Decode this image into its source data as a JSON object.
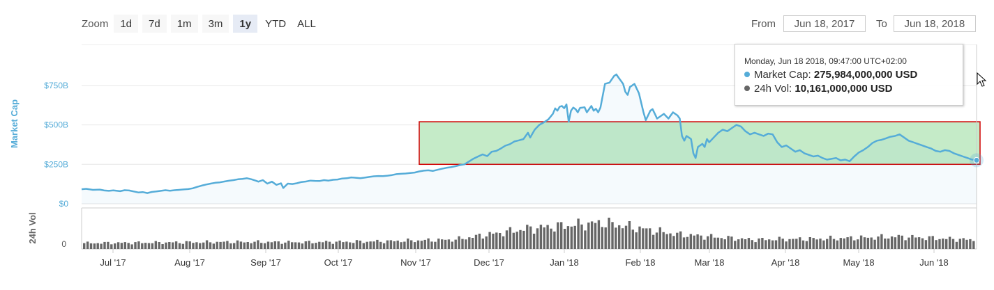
{
  "zoom": {
    "label": "Zoom",
    "buttons": [
      "1d",
      "7d",
      "1m",
      "3m",
      "1y",
      "YTD",
      "ALL"
    ],
    "active": "1y"
  },
  "range": {
    "from_label": "From",
    "from_value": "Jun 18, 2017",
    "to_label": "To",
    "to_value": "Jun 18, 2018"
  },
  "tooltip": {
    "date": "Monday, Jun 18 2018, 09:47:00 UTC+02:00",
    "market_cap_label": "Market Cap:",
    "market_cap_value": "275,984,000,000 USD",
    "vol_label": "24h Vol:",
    "vol_value": "10,161,000,000 USD"
  },
  "colors": {
    "market_cap": "#55acd8",
    "volume": "#666666",
    "highlight_fill": "#c5ebc8",
    "highlight_border": "#d00000"
  },
  "chart_data": {
    "type": "area",
    "ylabel": "Market Cap",
    "ylabel_vol": "24h Vol",
    "y_ticks": [
      "$0",
      "$250B",
      "$500B",
      "$750B"
    ],
    "vol_ticks": [
      "0"
    ],
    "x_ticks": [
      "Jul '17",
      "Aug '17",
      "Sep '17",
      "Oct '17",
      "Nov '17",
      "Dec '17",
      "Jan '18",
      "Feb '18",
      "Mar '18",
      "Apr '18",
      "May '18",
      "Jun '18"
    ],
    "ylim": [
      0,
      800
    ],
    "x_range_days": [
      0,
      365
    ],
    "series": [
      {
        "name": "Market Cap",
        "unit": "billion USD",
        "points": [
          [
            0,
            92
          ],
          [
            2,
            95
          ],
          [
            5,
            88
          ],
          [
            8,
            90
          ],
          [
            10,
            84
          ],
          [
            12,
            82
          ],
          [
            14,
            85
          ],
          [
            17,
            80
          ],
          [
            19,
            86
          ],
          [
            21,
            84
          ],
          [
            23,
            78
          ],
          [
            25,
            72
          ],
          [
            27,
            74
          ],
          [
            29,
            68
          ],
          [
            31,
            75
          ],
          [
            33,
            78
          ],
          [
            35,
            82
          ],
          [
            37,
            86
          ],
          [
            39,
            83
          ],
          [
            41,
            86
          ],
          [
            43,
            88
          ],
          [
            45,
            91
          ],
          [
            47,
            93
          ],
          [
            49,
            98
          ],
          [
            51,
            107
          ],
          [
            53,
            115
          ],
          [
            55,
            122
          ],
          [
            57,
            128
          ],
          [
            59,
            133
          ],
          [
            61,
            136
          ],
          [
            63,
            141
          ],
          [
            65,
            146
          ],
          [
            67,
            150
          ],
          [
            69,
            155
          ],
          [
            71,
            158
          ],
          [
            73,
            162
          ],
          [
            75,
            155
          ],
          [
            77,
            146
          ],
          [
            78,
            140
          ],
          [
            80,
            150
          ],
          [
            82,
            128
          ],
          [
            84,
            140
          ],
          [
            86,
            120
          ],
          [
            88,
            130
          ],
          [
            89,
            100
          ],
          [
            91,
            128
          ],
          [
            93,
            125
          ],
          [
            95,
            130
          ],
          [
            97,
            138
          ],
          [
            99,
            141
          ],
          [
            101,
            147
          ],
          [
            103,
            145
          ],
          [
            105,
            144
          ],
          [
            107,
            150
          ],
          [
            109,
            147
          ],
          [
            111,
            152
          ],
          [
            113,
            154
          ],
          [
            115,
            160
          ],
          [
            117,
            162
          ],
          [
            119,
            167
          ],
          [
            121,
            165
          ],
          [
            123,
            162
          ],
          [
            125,
            166
          ],
          [
            127,
            170
          ],
          [
            129,
            174
          ],
          [
            131,
            176
          ],
          [
            133,
            175
          ],
          [
            135,
            178
          ],
          [
            137,
            182
          ],
          [
            139,
            188
          ],
          [
            141,
            190
          ],
          [
            143,
            192
          ],
          [
            145,
            195
          ],
          [
            147,
            198
          ],
          [
            149,
            205
          ],
          [
            151,
            210
          ],
          [
            153,
            212
          ],
          [
            155,
            208
          ],
          [
            157,
            215
          ],
          [
            159,
            222
          ],
          [
            161,
            228
          ],
          [
            163,
            232
          ],
          [
            165,
            238
          ],
          [
            167,
            245
          ],
          [
            169,
            250
          ],
          [
            171,
            268
          ],
          [
            173,
            286
          ],
          [
            175,
            300
          ],
          [
            177,
            313
          ],
          [
            179,
            302
          ],
          [
            181,
            330
          ],
          [
            183,
            335
          ],
          [
            185,
            350
          ],
          [
            187,
            368
          ],
          [
            189,
            378
          ],
          [
            191,
            395
          ],
          [
            193,
            402
          ],
          [
            195,
            410
          ],
          [
            197,
            450
          ],
          [
            198,
            420
          ],
          [
            200,
            470
          ],
          [
            202,
            500
          ],
          [
            204,
            516
          ],
          [
            206,
            535
          ],
          [
            208,
            570
          ],
          [
            209,
            605
          ],
          [
            210,
            590
          ],
          [
            211,
            615
          ],
          [
            212,
            620
          ],
          [
            213,
            606
          ],
          [
            214,
            630
          ],
          [
            215,
            520
          ],
          [
            216,
            590
          ],
          [
            217,
            610
          ],
          [
            218,
            600
          ],
          [
            219,
            580
          ],
          [
            220,
            608
          ],
          [
            221,
            610
          ],
          [
            222,
            612
          ],
          [
            223,
            580
          ],
          [
            224,
            600
          ],
          [
            225,
            620
          ],
          [
            226,
            590
          ],
          [
            227,
            602
          ],
          [
            228,
            580
          ],
          [
            229,
            610
          ],
          [
            231,
            760
          ],
          [
            233,
            768
          ],
          [
            235,
            810
          ],
          [
            236,
            820
          ],
          [
            237,
            800
          ],
          [
            239,
            760
          ],
          [
            240,
            710
          ],
          [
            241,
            690
          ],
          [
            242,
            740
          ],
          [
            244,
            760
          ],
          [
            245,
            730
          ],
          [
            246,
            700
          ],
          [
            248,
            580
          ],
          [
            249,
            530
          ],
          [
            251,
            590
          ],
          [
            252,
            600
          ],
          [
            253,
            570
          ],
          [
            254,
            540
          ],
          [
            256,
            560
          ],
          [
            257,
            570
          ],
          [
            259,
            540
          ],
          [
            260,
            560
          ],
          [
            261,
            580
          ],
          [
            263,
            560
          ],
          [
            264,
            540
          ],
          [
            265,
            430
          ],
          [
            266,
            400
          ],
          [
            267,
            430
          ],
          [
            268,
            420
          ],
          [
            269,
            410
          ],
          [
            270,
            320
          ],
          [
            271,
            290
          ],
          [
            272,
            360
          ],
          [
            273,
            370
          ],
          [
            274,
            380
          ],
          [
            275,
            360
          ],
          [
            276,
            410
          ],
          [
            277,
            390
          ],
          [
            278,
            405
          ],
          [
            279,
            420
          ],
          [
            281,
            450
          ],
          [
            283,
            470
          ],
          [
            285,
            460
          ],
          [
            287,
            480
          ],
          [
            289,
            500
          ],
          [
            291,
            490
          ],
          [
            293,
            460
          ],
          [
            295,
            440
          ],
          [
            297,
            450
          ],
          [
            299,
            440
          ],
          [
            301,
            430
          ],
          [
            303,
            445
          ],
          [
            305,
            440
          ],
          [
            307,
            390
          ],
          [
            309,
            360
          ],
          [
            311,
            370
          ],
          [
            313,
            350
          ],
          [
            315,
            330
          ],
          [
            317,
            340
          ],
          [
            319,
            320
          ],
          [
            321,
            310
          ],
          [
            323,
            300
          ],
          [
            325,
            305
          ],
          [
            327,
            290
          ],
          [
            329,
            280
          ],
          [
            331,
            285
          ],
          [
            333,
            290
          ],
          [
            335,
            275
          ],
          [
            337,
            280
          ],
          [
            339,
            270
          ],
          [
            341,
            300
          ],
          [
            343,
            325
          ],
          [
            345,
            340
          ],
          [
            347,
            360
          ],
          [
            349,
            385
          ],
          [
            351,
            400
          ],
          [
            353,
            405
          ],
          [
            355,
            415
          ],
          [
            357,
            425
          ],
          [
            359,
            430
          ],
          [
            361,
            440
          ],
          [
            363,
            420
          ],
          [
            365,
            400
          ],
          [
            367,
            390
          ],
          [
            369,
            380
          ],
          [
            371,
            370
          ],
          [
            373,
            360
          ],
          [
            375,
            350
          ],
          [
            377,
            335
          ],
          [
            379,
            330
          ],
          [
            381,
            340
          ],
          [
            383,
            335
          ],
          [
            385,
            320
          ],
          [
            387,
            310
          ],
          [
            389,
            300
          ],
          [
            391,
            290
          ],
          [
            393,
            280
          ],
          [
            395,
            276
          ]
        ]
      },
      {
        "name": "24h Vol",
        "unit": "relative",
        "monthly_levels": [
          2,
          2.2,
          2.4,
          2.3,
          2.6,
          3.2,
          7,
          9,
          5,
          3.2,
          3.5,
          4.2,
          3.1
        ]
      }
    ],
    "highlight_box": {
      "label": "",
      "y_range_billion": [
        250,
        520
      ]
    },
    "tooltip_point": {
      "day": 395,
      "value": 276
    }
  }
}
